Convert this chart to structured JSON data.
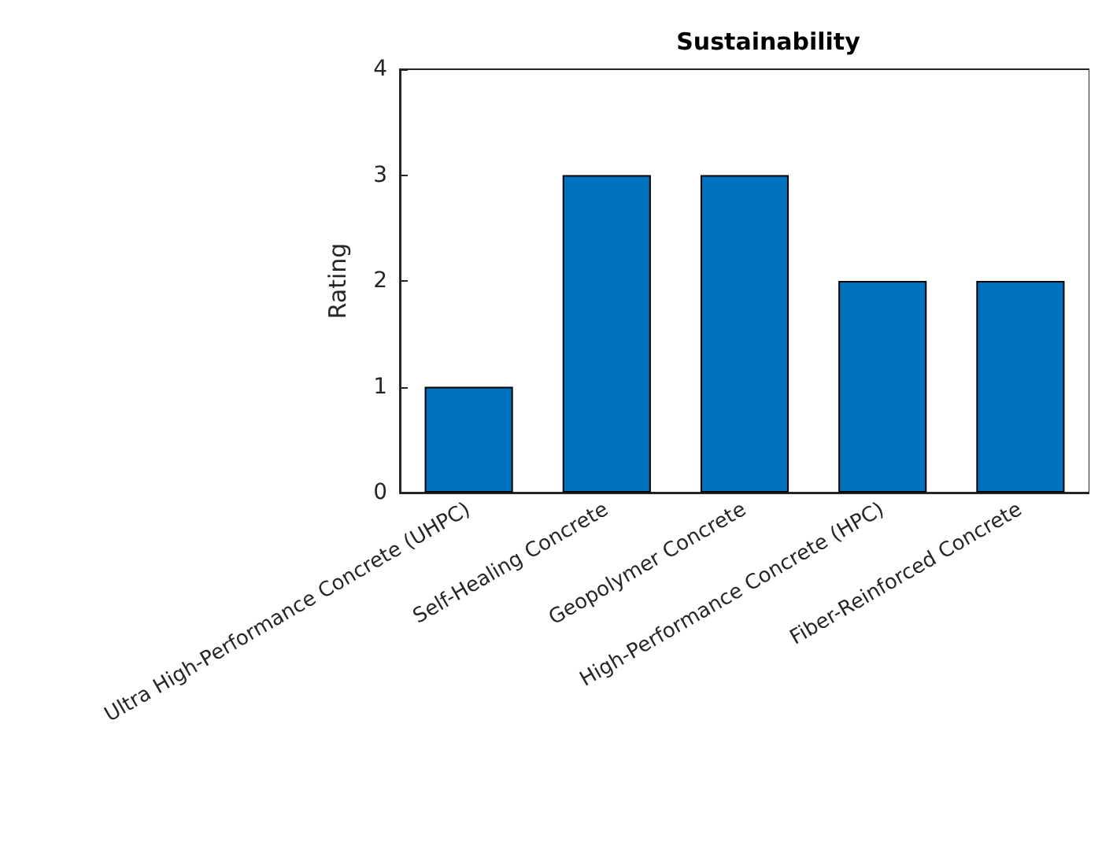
{
  "chart_data": {
    "type": "bar",
    "title": "Sustainability",
    "ylabel": "Rating",
    "categories": [
      "Ultra High-Performance Concrete (UHPC)",
      "Self-Healing Concrete",
      "Geopolymer Concrete",
      "High-Performance Concrete (HPC)",
      "Fiber-Reinforced Concrete"
    ],
    "values": [
      1,
      3,
      3,
      2,
      2
    ],
    "color": "#0072bd",
    "ylim": [
      0,
      4
    ],
    "yticks": [
      0,
      1,
      2,
      3,
      4
    ],
    "grid": false
  }
}
